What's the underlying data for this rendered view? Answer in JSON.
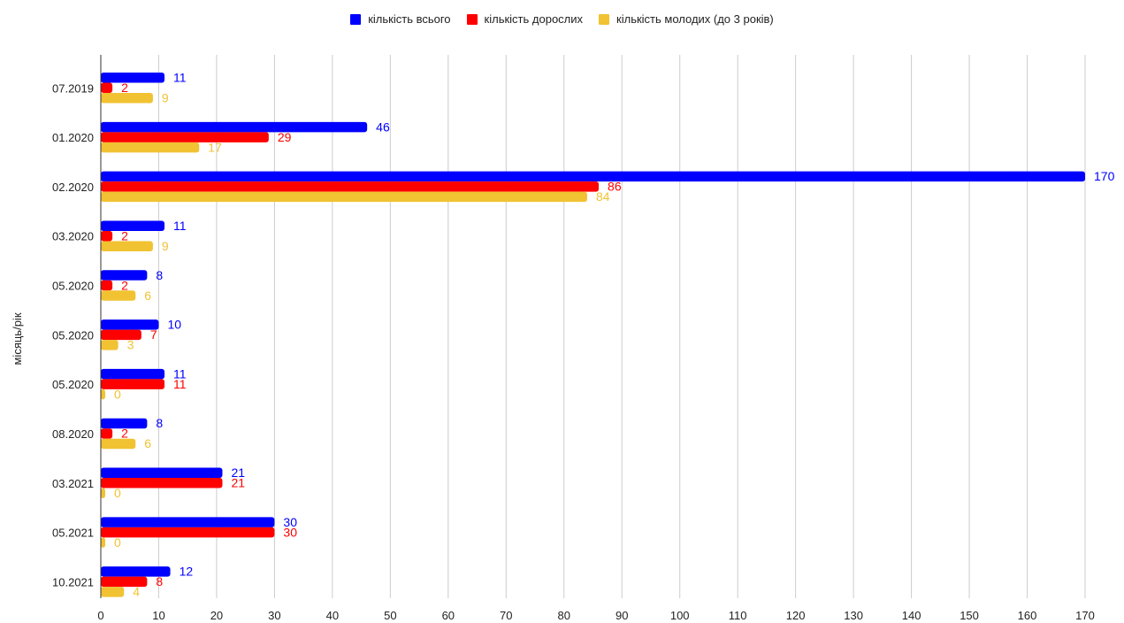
{
  "chart_data": {
    "type": "bar",
    "orientation": "horizontal",
    "categories": [
      "07.2019",
      "01.2020",
      "02.2020",
      "03.2020",
      "05.2020",
      "05.2020",
      "05.2020",
      "08.2020",
      "03.2021",
      "05.2021",
      "10.2021"
    ],
    "series": [
      {
        "name": "кількість всього",
        "color": "#0000ff",
        "values": [
          11,
          46,
          170,
          11,
          8,
          10,
          11,
          8,
          21,
          30,
          12
        ]
      },
      {
        "name": "кількість дорослих",
        "color": "#ff0000",
        "values": [
          2,
          29,
          86,
          2,
          2,
          7,
          11,
          2,
          21,
          30,
          8
        ]
      },
      {
        "name": "кількість молодих (до 3 років)",
        "color": "#f1c232",
        "values": [
          9,
          17,
          84,
          9,
          6,
          3,
          0,
          6,
          0,
          0,
          4
        ]
      }
    ],
    "xlabel": "",
    "ylabel": "місяць/рік",
    "xlim": [
      0,
      170
    ],
    "xticks": [
      0,
      10,
      20,
      30,
      40,
      50,
      60,
      70,
      80,
      90,
      100,
      110,
      120,
      130,
      140,
      150,
      160,
      170
    ],
    "grid": true,
    "legend_position": "top-center",
    "data_labels": true
  }
}
